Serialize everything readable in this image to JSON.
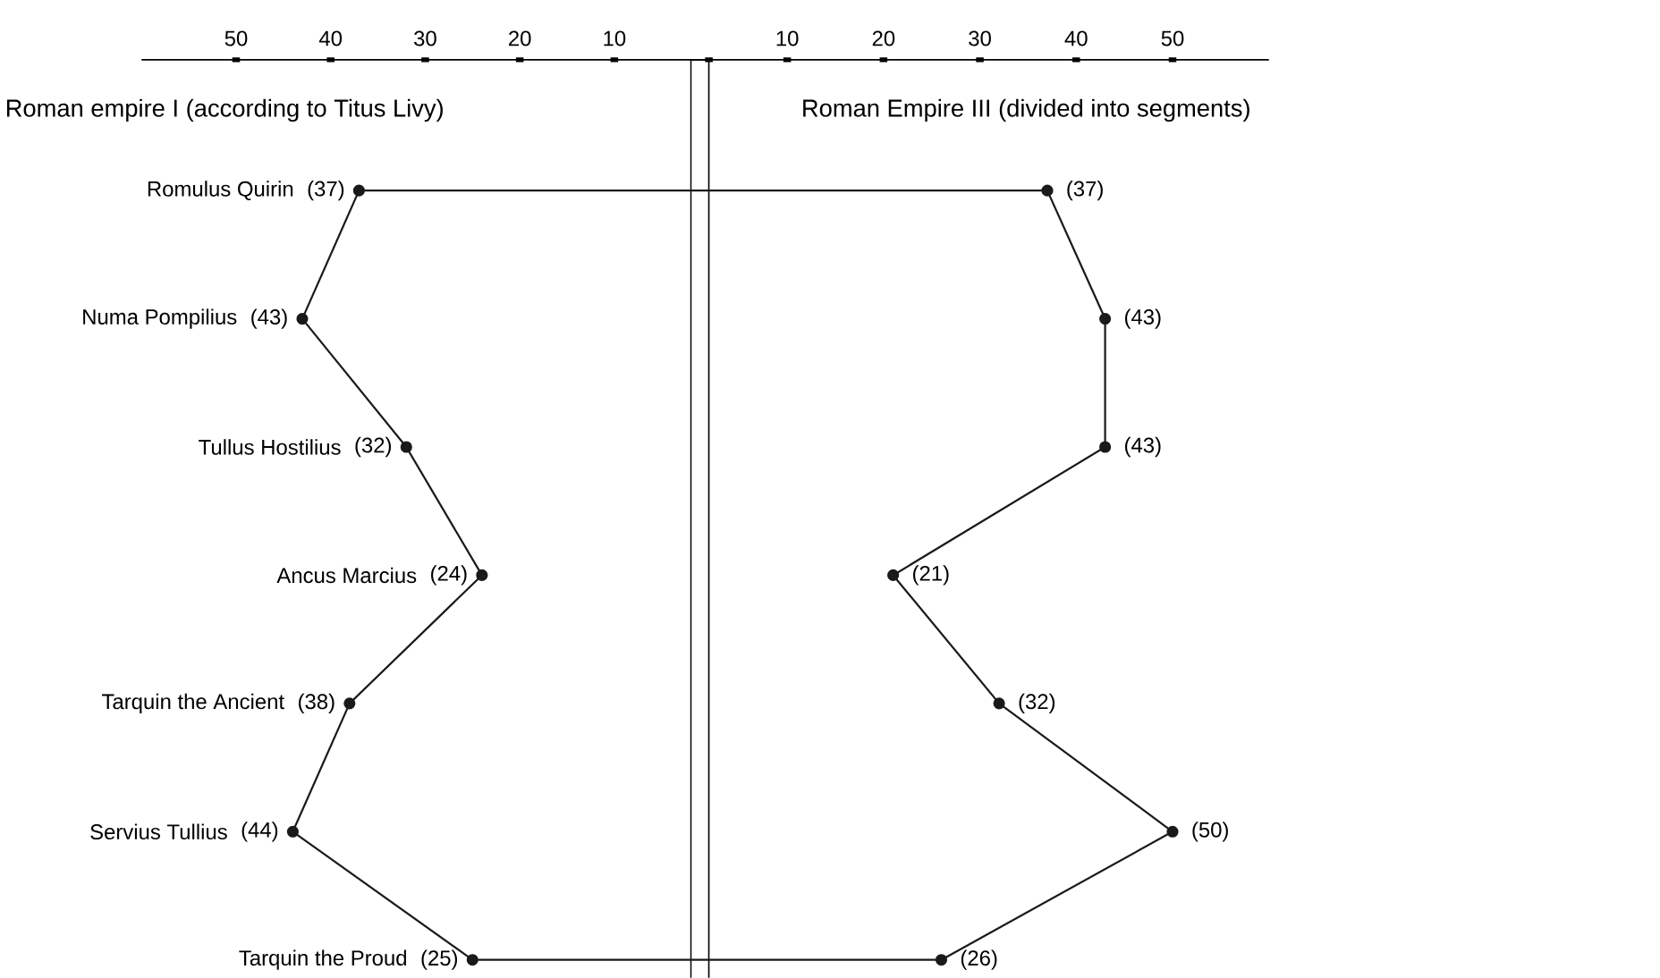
{
  "chart_data": [
    {
      "type": "line",
      "title": "Roman empire I (according to Titus Livy)",
      "orientation": "horizontal",
      "categories": [
        "Romulus Quirin",
        "Numa Pompilius",
        "Tullus Hostilius",
        "Ancus Marcius",
        "Tarquin the Ancient",
        "Servius Tullius",
        "Tarquin the Proud"
      ],
      "values": [
        37,
        43,
        32,
        24,
        38,
        44,
        25
      ],
      "value_labels": [
        "(37)",
        "(43)",
        "(32)",
        "(24)",
        "(38)",
        "(44)",
        "(25)"
      ],
      "color": "#1a1a1a",
      "marker": "circle",
      "line_style": "solid",
      "xlim": [
        60,
        0
      ],
      "xticks": [
        50,
        40,
        30,
        20,
        10,
        {
          "value": 0,
          "label": null
        }
      ]
    },
    {
      "type": "line",
      "title": "Roman Empire III (divided into segments)",
      "orientation": "horizontal",
      "categories": [
        null,
        null,
        null,
        null,
        null,
        null,
        null
      ],
      "values": [
        37,
        43,
        43,
        21,
        32,
        50,
        26
      ],
      "value_labels": [
        "(37)",
        "(43)",
        "(43)",
        "(21)",
        "(32)",
        "(50)",
        "(26)"
      ],
      "color": "#1a1a1a",
      "marker": "circle",
      "line_style": "solid",
      "xlim": [
        0,
        60
      ],
      "xticks": [
        10,
        20,
        30,
        40,
        50
      ]
    }
  ]
}
